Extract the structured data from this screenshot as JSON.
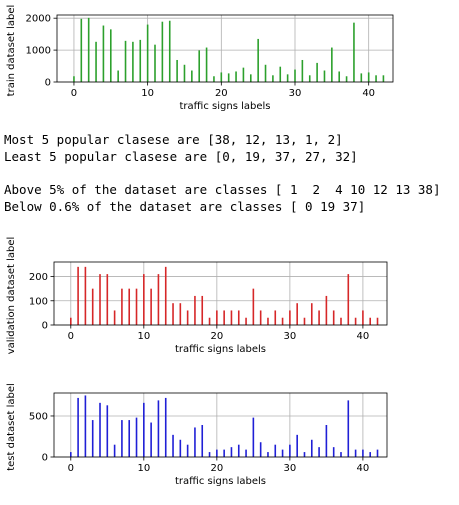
{
  "charts": [
    {
      "name": "train-chart",
      "type": "bar",
      "color": "#2ca02c",
      "xlabel": "traffic signs labels",
      "ylabel": "train dataset label",
      "xlim": [
        -2.3,
        43.3
      ],
      "ylim": [
        0,
        2100
      ],
      "xticks": [
        0,
        10,
        20,
        30,
        40
      ],
      "yticks": [
        0,
        1000,
        2000
      ],
      "x": [
        0,
        1,
        2,
        3,
        4,
        5,
        6,
        7,
        8,
        9,
        10,
        11,
        12,
        13,
        14,
        15,
        16,
        17,
        18,
        19,
        20,
        21,
        22,
        23,
        24,
        25,
        26,
        27,
        28,
        29,
        30,
        31,
        32,
        33,
        34,
        35,
        36,
        37,
        38,
        39,
        40,
        41,
        42
      ],
      "values": [
        180,
        1980,
        2010,
        1260,
        1770,
        1650,
        360,
        1290,
        1260,
        1320,
        1800,
        1170,
        1890,
        1920,
        690,
        540,
        360,
        990,
        1080,
        180,
        300,
        270,
        330,
        450,
        240,
        1350,
        540,
        210,
        480,
        240,
        390,
        690,
        210,
        599,
        360,
        1080,
        330,
        180,
        1860,
        270,
        300,
        210,
        210
      ]
    },
    {
      "name": "validation-chart",
      "type": "bar",
      "color": "#d62728",
      "xlabel": "traffic signs labels",
      "ylabel": "validation dataset label",
      "xlim": [
        -2.3,
        43.3
      ],
      "ylim": [
        0,
        260
      ],
      "xticks": [
        0,
        10,
        20,
        30,
        40
      ],
      "yticks": [
        0,
        100,
        200
      ],
      "x": [
        0,
        1,
        2,
        3,
        4,
        5,
        6,
        7,
        8,
        9,
        10,
        11,
        12,
        13,
        14,
        15,
        16,
        17,
        18,
        19,
        20,
        21,
        22,
        23,
        24,
        25,
        26,
        27,
        28,
        29,
        30,
        31,
        32,
        33,
        34,
        35,
        36,
        37,
        38,
        39,
        40,
        41,
        42
      ],
      "values": [
        30,
        240,
        240,
        150,
        210,
        210,
        60,
        150,
        150,
        150,
        210,
        150,
        210,
        240,
        90,
        90,
        60,
        120,
        120,
        30,
        60,
        60,
        60,
        60,
        30,
        150,
        60,
        30,
        60,
        30,
        60,
        90,
        30,
        90,
        60,
        120,
        60,
        30,
        210,
        30,
        60,
        30,
        30
      ]
    },
    {
      "name": "test-chart",
      "type": "bar",
      "color": "#1f1fd6",
      "xlabel": "traffic signs labels",
      "ylabel": "test dataset label",
      "xlim": [
        -2.3,
        43.3
      ],
      "ylim": [
        0,
        780
      ],
      "xticks": [
        0,
        10,
        20,
        30,
        40
      ],
      "yticks": [
        0,
        500
      ],
      "x": [
        0,
        1,
        2,
        3,
        4,
        5,
        6,
        7,
        8,
        9,
        10,
        11,
        12,
        13,
        14,
        15,
        16,
        17,
        18,
        19,
        20,
        21,
        22,
        23,
        24,
        25,
        26,
        27,
        28,
        29,
        30,
        31,
        32,
        33,
        34,
        35,
        36,
        37,
        38,
        39,
        40,
        41,
        42
      ],
      "values": [
        60,
        720,
        750,
        450,
        660,
        630,
        150,
        450,
        450,
        480,
        660,
        420,
        690,
        720,
        270,
        210,
        150,
        360,
        390,
        60,
        90,
        90,
        120,
        150,
        90,
        480,
        180,
        60,
        150,
        90,
        150,
        270,
        60,
        210,
        120,
        390,
        120,
        60,
        690,
        90,
        90,
        60,
        90
      ]
    }
  ],
  "output": {
    "line1": "Most 5 popular clasese are [38, 12, 13, 1, 2]",
    "line2": "Least 5 popular clasese are [0, 19, 37, 27, 32]",
    "line3": "Above 5% of the dataset are classes [ 1  2  4 10 12 13 38]",
    "line4": "Below 0.6% of the dataset are classes [ 0 19 37]"
  }
}
